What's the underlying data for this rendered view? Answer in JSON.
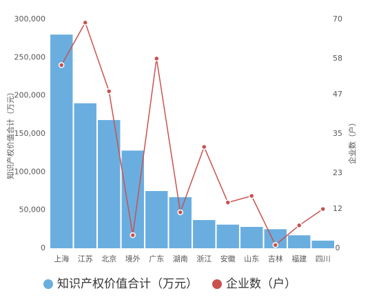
{
  "chart_data": {
    "type": "bar-line",
    "categories": [
      "上海",
      "江苏",
      "北京",
      "境外",
      "广东",
      "湖南",
      "浙江",
      "安徽",
      "山东",
      "吉林",
      "福建",
      "四川"
    ],
    "series": [
      {
        "name": "知识产权价值合计（万元）",
        "color": "#6aaee0",
        "type": "bar",
        "values": [
          280000,
          190000,
          168000,
          128000,
          75000,
          67000,
          37000,
          31000,
          28000,
          25000,
          17000,
          10000
        ]
      },
      {
        "name": "企业数（户）",
        "color": "#c9514f",
        "type": "line",
        "axis": "y2",
        "values": [
          56,
          69,
          48,
          4,
          58,
          11,
          31,
          14,
          16,
          1,
          7,
          12
        ]
      }
    ],
    "ylabel": "知识产权价值合计（万元）",
    "y2label": "企业数（户）",
    "ylim": [
      0,
      300000
    ],
    "yticks": [
      0,
      {
        "value": 50000,
        "label": "50,000"
      },
      {
        "value": 100000,
        "label": "100,000"
      },
      {
        "value": 150000,
        "label": "150,000"
      },
      {
        "value": 200000,
        "label": "200,000"
      },
      {
        "value": 250000,
        "label": "250,000"
      },
      {
        "value": 300000,
        "label": "300,000"
      }
    ],
    "y2lim": [
      0,
      70
    ],
    "y2ticks": [
      0,
      12,
      23,
      35,
      47,
      58,
      70
    ],
    "grid": false,
    "legend": "bottom"
  }
}
